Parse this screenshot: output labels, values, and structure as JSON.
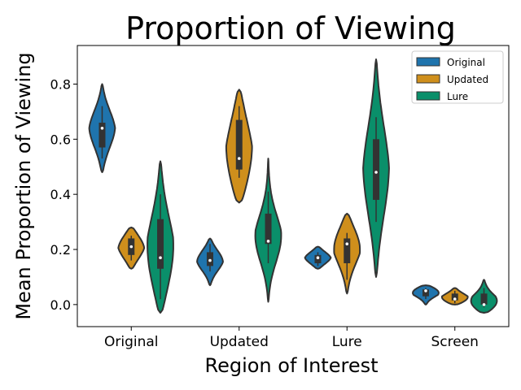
{
  "chart_data": {
    "type": "violin",
    "title": "Proportion of Viewing",
    "xlabel": "Region of Interest",
    "ylabel": "Mean Proportion of Viewing",
    "categories": [
      "Original",
      "Updated",
      "Lure",
      "Screen"
    ],
    "ylim": [
      -0.08,
      0.94
    ],
    "yticks": [
      "0.0",
      "0.2",
      "0.4",
      "0.6",
      "0.8"
    ],
    "legend_position": "top-right",
    "series": [
      {
        "name": "Original",
        "color": "#1f74ad",
        "groups": [
          {
            "category": "Original",
            "min": 0.48,
            "max": 0.8,
            "q1": 0.57,
            "median": 0.64,
            "q3": 0.66,
            "whisker_low": 0.53,
            "whisker_high": 0.72
          },
          {
            "category": "Updated",
            "min": 0.07,
            "max": 0.24,
            "q1": 0.14,
            "median": 0.16,
            "q3": 0.19,
            "whisker_low": 0.12,
            "whisker_high": 0.22
          },
          {
            "category": "Lure",
            "min": 0.13,
            "max": 0.21,
            "q1": 0.15,
            "median": 0.17,
            "q3": 0.18,
            "whisker_low": 0.14,
            "whisker_high": 0.19
          },
          {
            "category": "Screen",
            "min": 0.0,
            "max": 0.07,
            "q1": 0.03,
            "median": 0.05,
            "q3": 0.055,
            "whisker_low": 0.02,
            "whisker_high": 0.06
          }
        ]
      },
      {
        "name": "Updated",
        "color": "#cf8f1c",
        "groups": [
          {
            "category": "Original",
            "min": 0.13,
            "max": 0.28,
            "q1": 0.18,
            "median": 0.21,
            "q3": 0.24,
            "whisker_low": 0.16,
            "whisker_high": 0.25
          },
          {
            "category": "Updated",
            "min": 0.37,
            "max": 0.78,
            "q1": 0.49,
            "median": 0.53,
            "q3": 0.67,
            "whisker_low": 0.46,
            "whisker_high": 0.72
          },
          {
            "category": "Lure",
            "min": 0.04,
            "max": 0.33,
            "q1": 0.15,
            "median": 0.22,
            "q3": 0.24,
            "whisker_low": 0.09,
            "whisker_high": 0.26
          },
          {
            "category": "Screen",
            "min": 0.0,
            "max": 0.06,
            "q1": 0.015,
            "median": 0.02,
            "q3": 0.04,
            "whisker_low": 0.005,
            "whisker_high": 0.05
          }
        ]
      },
      {
        "name": "Lure",
        "color": "#0a8f6a",
        "groups": [
          {
            "category": "Original",
            "min": -0.03,
            "max": 0.52,
            "q1": 0.13,
            "median": 0.17,
            "q3": 0.31,
            "whisker_low": 0.02,
            "whisker_high": 0.4
          },
          {
            "category": "Updated",
            "min": 0.01,
            "max": 0.53,
            "q1": 0.22,
            "median": 0.23,
            "q3": 0.33,
            "whisker_low": 0.15,
            "whisker_high": 0.41
          },
          {
            "category": "Lure",
            "min": 0.1,
            "max": 0.89,
            "q1": 0.38,
            "median": 0.48,
            "q3": 0.6,
            "whisker_low": 0.3,
            "whisker_high": 0.68
          },
          {
            "category": "Screen",
            "min": -0.03,
            "max": 0.09,
            "q1": 0.0,
            "median": 0.0,
            "q3": 0.04,
            "whisker_low": -0.01,
            "whisker_high": 0.06
          }
        ]
      }
    ]
  }
}
